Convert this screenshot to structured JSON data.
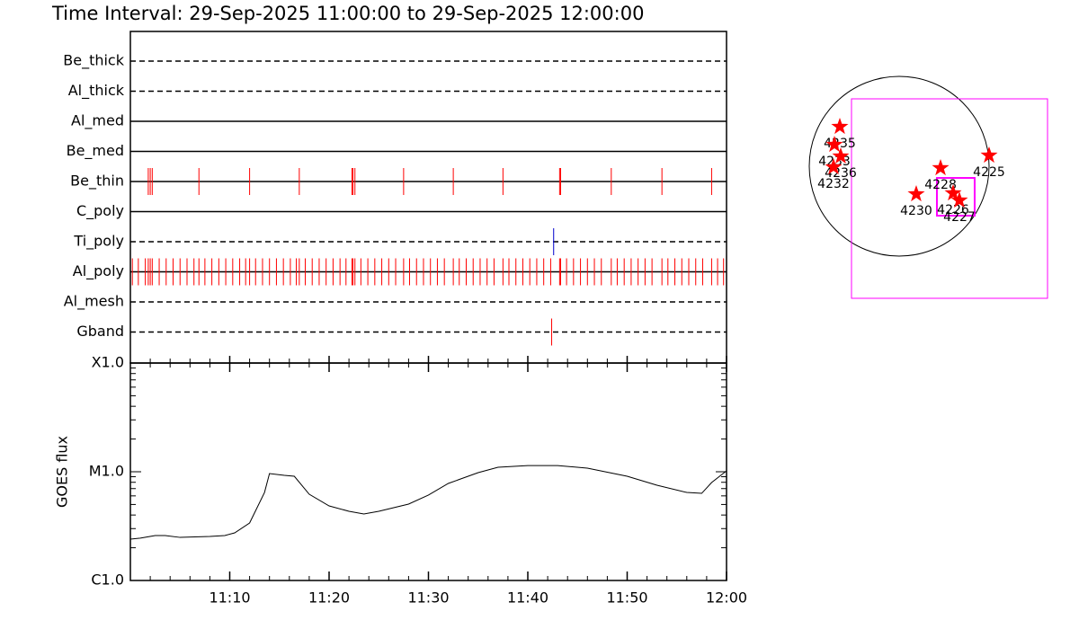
{
  "title": "Time Interval: 29-Sep-2025 11:00:00 to 29-Sep-2025 12:00:00",
  "chart_data": [
    {
      "type": "event",
      "xlim": [
        0,
        60
      ],
      "series": [
        {
          "name": "Be_thick",
          "line_style": "dashed",
          "color": "#ff0000",
          "values": []
        },
        {
          "name": "Al_thick",
          "line_style": "dashed",
          "color": "#ff0000",
          "values": []
        },
        {
          "name": "Al_med",
          "line_style": "solid",
          "color": "#ff0000",
          "values": []
        },
        {
          "name": "Be_med",
          "line_style": "solid",
          "color": "#ff0000",
          "values": []
        },
        {
          "name": "Be_thin",
          "line_style": "solid",
          "color": "#ff0000",
          "values": [
            1.8,
            2.0,
            2.2,
            6.9,
            12.0,
            17.0,
            22.3,
            22.4,
            22.6,
            27.5,
            32.5,
            37.5,
            43.2,
            43.3,
            48.4,
            53.5,
            58.5
          ]
        },
        {
          "name": "C_poly",
          "line_style": "solid",
          "color": "#ff0000",
          "values": []
        },
        {
          "name": "Ti_poly",
          "line_style": "dashed",
          "color": "#0000cc",
          "values": [
            42.6
          ]
        },
        {
          "name": "Al_poly",
          "line_style": "solid",
          "color": "#ff0000",
          "values": [
            0.2,
            0.8,
            1.5,
            1.8,
            2.0,
            2.2,
            2.9,
            3.6,
            4.3,
            5.0,
            5.7,
            6.4,
            6.9,
            7.5,
            8.2,
            8.9,
            9.6,
            10.3,
            11.0,
            11.6,
            12.0,
            12.6,
            13.3,
            14.0,
            14.7,
            15.4,
            16.1,
            16.7,
            17.0,
            17.6,
            18.3,
            19.0,
            19.7,
            20.4,
            21.1,
            21.7,
            22.3,
            22.4,
            22.6,
            23.2,
            23.9,
            24.6,
            25.3,
            26.0,
            26.7,
            27.5,
            28.1,
            28.8,
            29.5,
            30.2,
            30.9,
            31.6,
            32.5,
            33.1,
            33.8,
            34.5,
            35.2,
            35.9,
            36.6,
            37.5,
            38.1,
            38.8,
            39.5,
            40.2,
            40.9,
            41.6,
            42.3,
            43.2,
            43.3,
            43.9,
            44.6,
            45.3,
            46.0,
            46.7,
            47.4,
            48.4,
            49.0,
            49.7,
            50.4,
            51.1,
            51.8,
            52.5,
            53.5,
            54.1,
            54.8,
            55.5,
            56.2,
            56.9,
            57.6,
            58.5,
            59.1,
            59.7
          ]
        },
        {
          "name": "Al_mesh",
          "line_style": "dashed",
          "color": "#ff0000",
          "values": []
        },
        {
          "name": "Gband",
          "line_style": "dashed",
          "color": "#ff0000",
          "values": [
            42.4
          ]
        }
      ]
    },
    {
      "type": "line",
      "ylabel": "GOES flux",
      "log": true,
      "color": "#000000",
      "xlim": [
        0,
        60
      ],
      "xticks": [
        {
          "value": 10,
          "label": "11:10"
        },
        {
          "value": 20,
          "label": "11:20"
        },
        {
          "value": 30,
          "label": "11:30"
        },
        {
          "value": 40,
          "label": "11:40"
        },
        {
          "value": 50,
          "label": "11:50"
        },
        {
          "value": 60,
          "label": "12:00"
        }
      ],
      "ylim": [
        1e-06,
        0.0001
      ],
      "yticks": [
        {
          "value": 1e-06,
          "label": "C1.0"
        },
        {
          "value": 1e-05,
          "label": "M1.0"
        },
        {
          "value": 0.0001,
          "label": "X1.0"
        }
      ],
      "x": [
        0,
        1,
        2.5,
        3.5,
        5,
        8,
        9.5,
        10.5,
        12,
        13.5,
        14,
        15.5,
        16.5,
        18,
        20,
        22,
        23.5,
        25,
        28,
        30,
        32,
        35,
        37,
        40,
        43,
        46,
        50,
        53,
        56,
        57.5,
        58.5,
        60
      ],
      "values": [
        2.4e-06,
        2.45e-06,
        2.59e-06,
        2.59e-06,
        2.49e-06,
        2.54e-06,
        2.59e-06,
        2.74e-06,
        3.38e-06,
        6.45e-06,
        9.62e-06,
        9.27e-06,
        9.09e-06,
        6.21e-06,
        4.85e-06,
        4.33e-06,
        4.09e-06,
        4.33e-06,
        5.04e-06,
        6.1e-06,
        7.81e-06,
        9.81e-06,
        1.1e-05,
        1.14e-05,
        1.14e-05,
        1.08e-05,
        9.09e-06,
        7.52e-06,
        6.45e-06,
        6.33e-06,
        7.96e-06,
        1.02e-05
      ]
    },
    {
      "type": "map",
      "marker_color": "#ff0000",
      "fov_color": "#ff00ff",
      "regions": [
        {
          "label": "4235",
          "x": -634,
          "y": 422
        },
        {
          "label": "4233",
          "x": -691,
          "y": 230
        },
        {
          "label": "4236",
          "x": -624,
          "y": 106
        },
        {
          "label": "4232",
          "x": -701,
          "y": -10
        },
        {
          "label": "4228",
          "x": 442,
          "y": -19
        },
        {
          "label": "4225",
          "x": 960,
          "y": 115
        },
        {
          "label": "4230",
          "x": 182,
          "y": -298
        },
        {
          "label": "4226",
          "x": 576,
          "y": -288
        },
        {
          "label": "4227",
          "x": 643,
          "y": -365
        }
      ],
      "fov": [
        {
          "x": [
            -509,
            1584
          ],
          "y": [
            720,
            -1411
          ]
        },
        {
          "x": [
            403,
            806
          ],
          "y": [
            -125,
            -528
          ]
        }
      ]
    }
  ]
}
